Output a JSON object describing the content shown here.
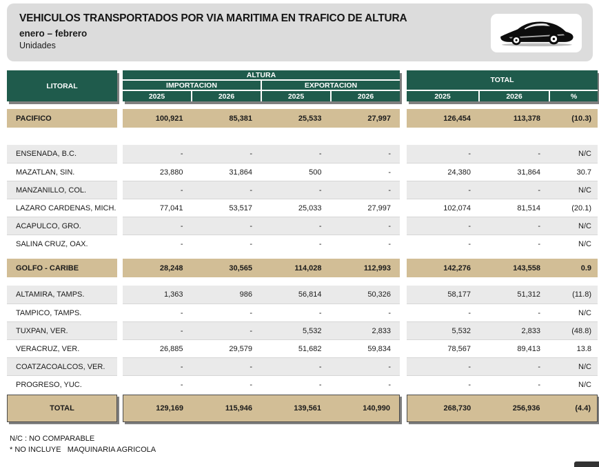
{
  "header": {
    "title": "VEHICULOS TRANSPORTADOS POR VIA MARITIMA EN TRAFICO DE ALTURA",
    "period": "enero – febrero",
    "units": "Unidades"
  },
  "colors": {
    "header_green": "#1F5B4C",
    "section_tan": "#D2BE96",
    "stripe_gray": "#EAEAEA",
    "shadow_gray": "#7F7F7F",
    "card_gray": "#DCDCDC"
  },
  "table": {
    "headers": {
      "litoral": "LITORAL",
      "altura": "ALTURA",
      "importacion": "IMPORTACION",
      "exportacion": "EXPORTACION",
      "total": "TOTAL",
      "y2025": "2025",
      "y2026": "2026",
      "pct": "%"
    },
    "rows": [
      {
        "type": "section",
        "name": "PACIFICO",
        "values": [
          "100,921",
          "85,381",
          "25,533",
          "27,997",
          "126,454",
          "113,378",
          "(10.3)"
        ]
      },
      {
        "type": "port",
        "name": "ENSENADA, B.C.",
        "values": [
          "-",
          "-",
          "-",
          "-",
          "-",
          "-",
          "N/C"
        ]
      },
      {
        "type": "port",
        "name": "MAZATLAN, SIN.",
        "values": [
          "23,880",
          "31,864",
          "500",
          "-",
          "24,380",
          "31,864",
          "30.7"
        ]
      },
      {
        "type": "port",
        "name": "MANZANILLO, COL.",
        "values": [
          "-",
          "-",
          "-",
          "-",
          "-",
          "-",
          "N/C"
        ]
      },
      {
        "type": "port",
        "name": "LAZARO CARDENAS, MICH.",
        "values": [
          "77,041",
          "53,517",
          "25,033",
          "27,997",
          "102,074",
          "81,514",
          "(20.1)"
        ]
      },
      {
        "type": "port",
        "name": "ACAPULCO, GRO.",
        "values": [
          "-",
          "-",
          "-",
          "-",
          "-",
          "-",
          "N/C"
        ]
      },
      {
        "type": "port",
        "name": "SALINA CRUZ, OAX.",
        "values": [
          "-",
          "-",
          "-",
          "-",
          "-",
          "-",
          "N/C"
        ]
      },
      {
        "type": "section",
        "name": "GOLFO - CARIBE",
        "values": [
          "28,248",
          "30,565",
          "114,028",
          "112,993",
          "142,276",
          "143,558",
          "0.9"
        ]
      },
      {
        "type": "port",
        "name": "ALTAMIRA, TAMPS.",
        "values": [
          "1,363",
          "986",
          "56,814",
          "50,326",
          "58,177",
          "51,312",
          "(11.8)"
        ]
      },
      {
        "type": "port",
        "name": "TAMPICO, TAMPS.",
        "values": [
          "-",
          "-",
          "-",
          "-",
          "-",
          "-",
          "N/C"
        ]
      },
      {
        "type": "port",
        "name": "TUXPAN, VER.",
        "values": [
          "-",
          "-",
          "5,532",
          "2,833",
          "5,532",
          "2,833",
          "(48.8)"
        ]
      },
      {
        "type": "port",
        "name": "VERACRUZ, VER.",
        "values": [
          "26,885",
          "29,579",
          "51,682",
          "59,834",
          "78,567",
          "89,413",
          "13.8"
        ]
      },
      {
        "type": "port",
        "name": "COATZACOALCOS, VER.",
        "values": [
          "-",
          "-",
          "-",
          "-",
          "-",
          "-",
          "N/C"
        ]
      },
      {
        "type": "port",
        "name": "PROGRESO, YUC.",
        "values": [
          "-",
          "-",
          "-",
          "-",
          "-",
          "-",
          "N/C"
        ]
      },
      {
        "type": "total",
        "name": "TOTAL",
        "values": [
          "129,169",
          "115,946",
          "139,561",
          "140,990",
          "268,730",
          "256,936",
          "(4.4)"
        ]
      }
    ]
  },
  "footnotes": [
    "N/C : NO COMPARABLE",
    "* NO INCLUYE   MAQUINARIA AGRICOLA"
  ]
}
